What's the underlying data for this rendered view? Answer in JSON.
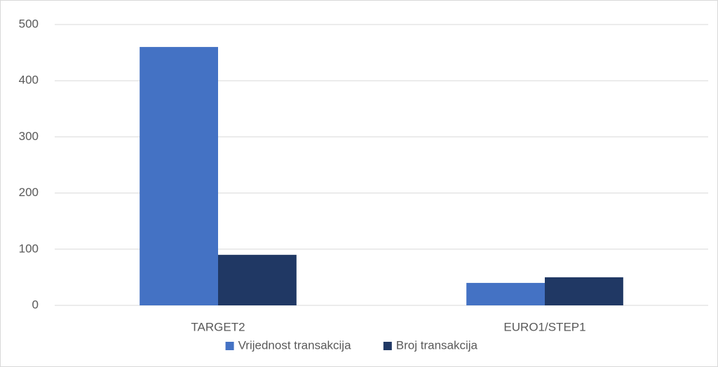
{
  "chart_data": {
    "type": "bar",
    "categories": [
      "TARGET2",
      "EURO1/STEP1"
    ],
    "series": [
      {
        "name": "Vrijednost transakcija",
        "color": "#4472c4",
        "values": [
          460,
          40
        ]
      },
      {
        "name": "Broj transakcija",
        "color": "#203864",
        "values": [
          90,
          50
        ]
      }
    ],
    "ylim": [
      0,
      500
    ],
    "yticks": [
      0,
      100,
      200,
      300,
      400,
      500
    ],
    "grid": true,
    "legend": "bottom"
  }
}
